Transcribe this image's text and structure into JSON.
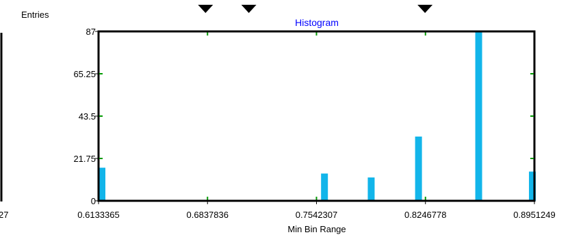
{
  "left_panel": {
    "clipped_tick_label": "27"
  },
  "chart_data": {
    "type": "bar",
    "title": "Histogram",
    "ylabel": "Entries",
    "xlabel": "Min Bin Range",
    "x_tick_labels": [
      "0.6133365",
      "0.6837836",
      "0.7542307",
      "0.8246778",
      "0.8951249"
    ],
    "x_ticks": [
      0.6133365,
      0.6837836,
      0.7542307,
      0.8246778,
      0.8951249
    ],
    "y_tick_labels": [
      "0",
      "21.75",
      "43.5",
      "65.25",
      "87"
    ],
    "y_ticks": [
      0,
      21.75,
      43.5,
      65.25,
      87
    ],
    "xlim": [
      0.6133365,
      0.8951249
    ],
    "ylim": [
      0,
      87
    ],
    "bars": [
      {
        "x": 0.61375,
        "value": 17
      },
      {
        "x": 0.7594,
        "value": 14
      },
      {
        "x": 0.7896,
        "value": 12
      },
      {
        "x": 0.8202,
        "value": 33
      },
      {
        "x": 0.8591,
        "value": 87
      },
      {
        "x": 0.8952,
        "value": 15
      }
    ],
    "marker_positions": [
      0.6825,
      0.7105,
      0.8244
    ],
    "bar_color": "#12b5ea",
    "title_color": "#0000ff",
    "frame_color": "#000000",
    "gridline_tick_color": "#009900",
    "grid": false
  }
}
